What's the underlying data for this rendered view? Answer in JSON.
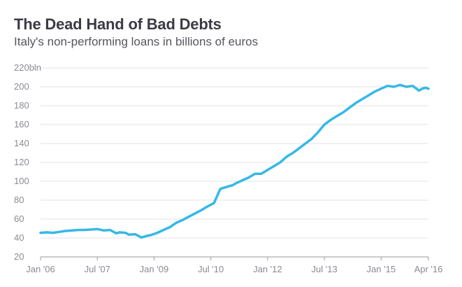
{
  "chart_data": {
    "type": "line",
    "title": "The Dead Hand of Bad Debts",
    "subtitle": "Italy's non-performing loans in billions of euros",
    "xlabel": "",
    "ylabel": "",
    "ylim": [
      20,
      220
    ],
    "xlim": [
      "2006-01",
      "2016-04"
    ],
    "yticks": [
      20,
      40,
      60,
      80,
      100,
      120,
      140,
      160,
      180,
      200,
      220
    ],
    "ytick_labels": [
      "20",
      "40",
      "60",
      "80",
      "100",
      "120",
      "140",
      "160",
      "180",
      "200",
      "220bln"
    ],
    "xticks": [
      "2006-01",
      "2007-07",
      "2009-01",
      "2010-07",
      "2012-01",
      "2013-07",
      "2015-01",
      "2016-04"
    ],
    "xtick_labels": [
      "Jan '06",
      "Jul '07",
      "Jan '09",
      "Jul '10",
      "Jan '12",
      "Jul '13",
      "Jan '15",
      "Apr '16"
    ],
    "grid": true,
    "color": "#36b8e6",
    "series": [
      {
        "x": [
          "2006-01",
          "2006-03",
          "2006-05",
          "2006-07",
          "2006-09",
          "2006-11",
          "2007-01",
          "2007-03",
          "2007-05",
          "2007-07",
          "2007-09",
          "2007-11",
          "2008-01",
          "2008-02",
          "2008-04",
          "2008-05",
          "2008-07",
          "2008-09",
          "2008-11",
          "2008-12",
          "2009-02",
          "2009-04",
          "2009-06",
          "2009-08",
          "2009-10",
          "2009-12",
          "2010-02",
          "2010-04",
          "2010-06",
          "2010-08",
          "2010-10",
          "2010-12",
          "2011-02",
          "2011-03",
          "2011-05",
          "2011-07",
          "2011-09",
          "2011-11",
          "2012-01",
          "2012-03",
          "2012-05",
          "2012-07",
          "2012-09",
          "2012-11",
          "2013-01",
          "2013-03",
          "2013-05",
          "2013-07",
          "2013-09",
          "2013-11",
          "2014-01",
          "2014-03",
          "2014-05",
          "2014-07",
          "2014-09",
          "2014-11",
          "2015-01",
          "2015-03",
          "2015-05",
          "2015-07",
          "2015-09",
          "2015-11",
          "2016-01",
          "2016-02",
          "2016-03",
          "2016-04"
        ],
        "y": [
          45.5,
          46,
          45.5,
          46.5,
          47.5,
          48,
          48.5,
          48.5,
          49,
          49.5,
          48,
          48.5,
          45,
          46,
          45.5,
          43.5,
          44,
          40.5,
          42.5,
          43,
          45.5,
          48.5,
          51.5,
          56,
          59,
          62.5,
          66,
          69.5,
          73.5,
          77,
          92,
          94,
          96,
          98,
          101,
          104,
          108,
          108,
          112,
          116,
          120,
          126,
          130,
          135,
          140,
          145,
          152,
          160,
          165,
          169,
          173,
          178,
          183,
          187,
          191,
          195,
          198,
          201,
          200,
          202,
          200,
          201,
          196,
          198,
          199,
          198
        ]
      }
    ]
  }
}
